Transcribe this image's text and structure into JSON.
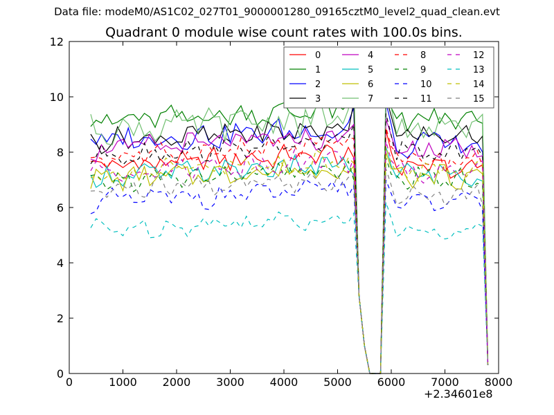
{
  "figure": {
    "suptitle": "Data file: modeM0/AS1C02_027T01_9000001280_09165cztM0_level2_quad_clean.evt",
    "title": "Quadrant 0 module wise count rates with 100.0s bins.",
    "x_offset_label": "+2.34601e8"
  },
  "chart_data": {
    "type": "line",
    "title": "Quadrant 0 module wise count rates with 100.0s bins.",
    "xlabel": "",
    "ylabel": "",
    "xlim": [
      0,
      8000
    ],
    "ylim": [
      0,
      12
    ],
    "x_ticks": [
      0,
      1000,
      2000,
      3000,
      4000,
      5000,
      6000,
      7000,
      8000
    ],
    "y_ticks": [
      0,
      2,
      4,
      6,
      8,
      10,
      12
    ],
    "grid": false,
    "legend_position": "top-right",
    "legend_columns": 4,
    "x_segments": [
      {
        "start": 400,
        "end": 5300,
        "step": 100
      },
      {
        "start": 5400,
        "end": 7800,
        "step": 100
      }
    ],
    "series": [
      {
        "name": "0",
        "color": "#ff0000",
        "dash": "solid",
        "base": 7.5,
        "amp": 0.35,
        "post": 7.4,
        "g1": [
          7.8,
          2.8,
          1.0,
          0.0,
          0.0,
          0.0,
          8.8,
          8.0
        ],
        "g2": [
          7.2,
          0.3
        ]
      },
      {
        "name": "1",
        "color": "#008000",
        "dash": "solid",
        "base": 9.1,
        "amp": 0.35,
        "post": 9.2,
        "g1": [
          9.8,
          2.8,
          1.0,
          0.0,
          0.0,
          0.0,
          10.0,
          9.6
        ],
        "g2": [
          8.8,
          0.4
        ]
      },
      {
        "name": "2",
        "color": "#0000ff",
        "dash": "solid",
        "base": 8.4,
        "amp": 0.4,
        "post": 8.3,
        "g1": [
          9.6,
          2.8,
          1.0,
          0.0,
          0.0,
          0.0,
          9.8,
          9.0
        ],
        "g2": [
          8.0,
          0.3
        ]
      },
      {
        "name": "3",
        "color": "#000000",
        "dash": "solid",
        "base": 8.4,
        "amp": 0.35,
        "post": 8.6,
        "g1": [
          9.8,
          2.8,
          1.0,
          0.0,
          0.0,
          0.0,
          10.0,
          9.3
        ],
        "g2": [
          7.9,
          0.3
        ]
      },
      {
        "name": "4",
        "color": "#bf00bf",
        "dash": "solid",
        "base": 8.1,
        "amp": 0.35,
        "post": 8.1,
        "g1": [
          9.0,
          2.8,
          1.0,
          0.0,
          0.0,
          0.0,
          9.2,
          8.6
        ],
        "g2": [
          7.8,
          0.4
        ]
      },
      {
        "name": "5",
        "color": "#00bfbf",
        "dash": "solid",
        "base": 7.1,
        "amp": 0.35,
        "post": 7.2,
        "g1": [
          7.2,
          2.8,
          1.0,
          0.0,
          0.0,
          0.0,
          8.2,
          7.5
        ],
        "g2": [
          6.8,
          0.3
        ]
      },
      {
        "name": "6",
        "color": "#bfbf00",
        "dash": "solid",
        "base": 7.0,
        "amp": 0.35,
        "post": 7.1,
        "g1": [
          7.5,
          2.8,
          1.0,
          0.0,
          0.0,
          0.0,
          8.0,
          7.4
        ],
        "g2": [
          6.9,
          0.3
        ]
      },
      {
        "name": "7",
        "color": "#70bf70",
        "dash": "solid",
        "base": 8.8,
        "amp": 0.5,
        "post": 8.8,
        "g1": [
          10.8,
          2.8,
          1.0,
          0.0,
          0.0,
          0.0,
          10.5,
          9.6
        ],
        "g2": [
          8.0,
          0.4
        ]
      },
      {
        "name": "8",
        "color": "#ff0000",
        "dash": "dashed",
        "base": 7.8,
        "amp": 0.35,
        "post": 7.7,
        "g1": [
          8.5,
          2.8,
          1.0,
          0.0,
          0.0,
          0.0,
          8.9,
          8.2
        ],
        "g2": [
          7.3,
          0.3
        ]
      },
      {
        "name": "9",
        "color": "#008000",
        "dash": "dashed",
        "base": 6.9,
        "amp": 0.35,
        "post": 7.0,
        "g1": [
          7.0,
          2.8,
          1.0,
          0.0,
          0.0,
          0.0,
          7.8,
          7.2
        ],
        "g2": [
          6.8,
          0.3
        ]
      },
      {
        "name": "10",
        "color": "#0000ff",
        "dash": "dashed",
        "base": 6.2,
        "amp": 0.35,
        "post": 6.2,
        "g1": [
          6.8,
          2.8,
          1.0,
          0.0,
          0.0,
          0.0,
          7.0,
          6.5
        ],
        "g2": [
          6.0,
          0.3
        ]
      },
      {
        "name": "11",
        "color": "#000000",
        "dash": "dashed",
        "base": 7.9,
        "amp": 0.35,
        "post": 8.0,
        "g1": [
          9.0,
          2.8,
          1.0,
          0.0,
          0.0,
          0.0,
          9.4,
          8.6
        ],
        "g2": [
          7.6,
          0.3
        ]
      },
      {
        "name": "12",
        "color": "#bf00bf",
        "dash": "dashed",
        "base": 7.3,
        "amp": 0.35,
        "post": 7.3,
        "g1": [
          7.8,
          2.8,
          1.0,
          0.0,
          0.0,
          0.0,
          8.4,
          7.7
        ],
        "g2": [
          7.0,
          0.3
        ]
      },
      {
        "name": "13",
        "color": "#00bfbf",
        "dash": "dashed",
        "base": 5.2,
        "amp": 0.3,
        "post": 5.1,
        "g1": [
          5.8,
          2.8,
          1.0,
          0.0,
          0.0,
          0.0,
          6.2,
          5.6
        ],
        "g2": [
          5.0,
          0.3
        ]
      },
      {
        "name": "14",
        "color": "#bfbf00",
        "dash": "dashed",
        "base": 7.2,
        "amp": 0.35,
        "post": 7.3,
        "g1": [
          7.6,
          2.8,
          1.0,
          0.0,
          0.0,
          0.0,
          8.2,
          7.6
        ],
        "g2": [
          7.0,
          0.3
        ]
      },
      {
        "name": "15",
        "color": "#808080",
        "dash": "dashed",
        "base": 6.6,
        "amp": 0.35,
        "post": 6.5,
        "g1": [
          7.2,
          2.8,
          1.0,
          0.0,
          0.0,
          0.0,
          7.4,
          6.8
        ],
        "g2": [
          6.4,
          0.3
        ]
      }
    ]
  }
}
